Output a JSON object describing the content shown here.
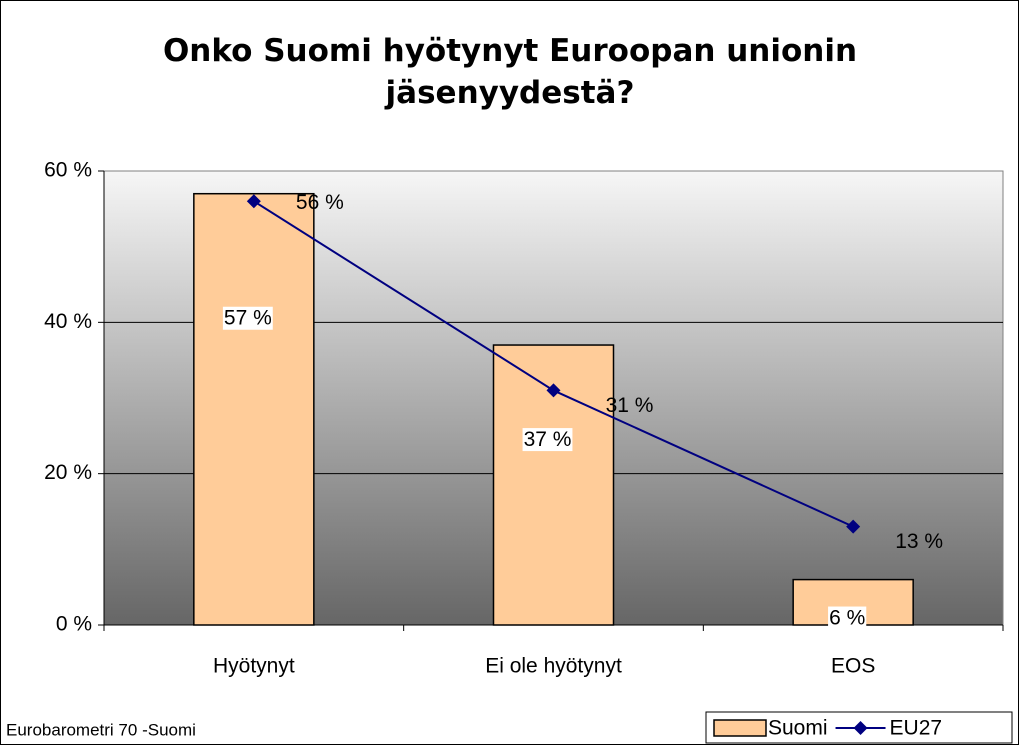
{
  "chart_data": {
    "type": "bar",
    "title": "Onko Suomi hyötynyt Euroopan unionin jäsenyydestä?",
    "footer": "Eurobarometri 70 -Suomi",
    "categories": [
      "Hyötynyt",
      "Ei ole hyötynyt",
      "EOS"
    ],
    "series": [
      {
        "name": "Suomi",
        "type": "bar",
        "color": "#ffcc99",
        "values": [
          57,
          37,
          6
        ],
        "value_labels": [
          "57 %",
          "37 %",
          "6 %"
        ]
      },
      {
        "name": "EU27",
        "type": "line",
        "color": "#000080",
        "values": [
          56,
          31,
          13
        ],
        "value_labels": [
          "56 %",
          "31 %",
          "13 %"
        ]
      }
    ],
    "ylim": [
      0,
      60
    ],
    "yticks": [
      {
        "value": 0,
        "label": "0 %"
      },
      {
        "value": 20,
        "label": "20 %"
      },
      {
        "value": 40,
        "label": "40 %"
      },
      {
        "value": 60,
        "label": "60 %"
      }
    ],
    "grid": true,
    "legend": "bottom-right"
  }
}
